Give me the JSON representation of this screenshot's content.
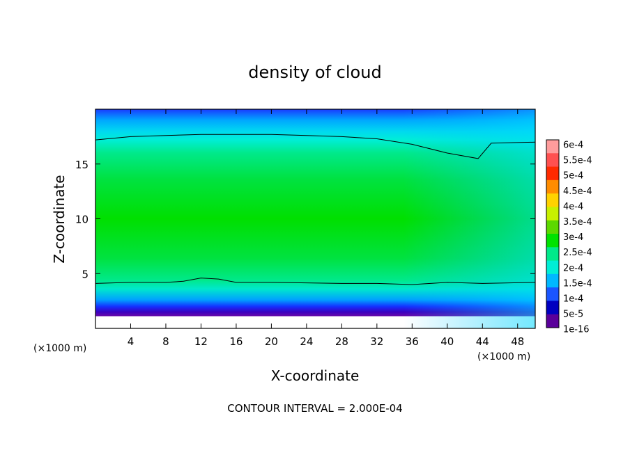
{
  "chart_data": {
    "type": "heatmap",
    "title": "density of cloud",
    "xlabel": "X-coordinate",
    "ylabel": "Z-coordinate",
    "x_unit": "(×1000 m)",
    "x_unit_right": "(×1000 m)",
    "xlim": [
      0,
      50
    ],
    "ylim": [
      0,
      20
    ],
    "x_ticks": [
      4,
      8,
      12,
      16,
      20,
      24,
      28,
      32,
      36,
      40,
      44,
      48
    ],
    "y_ticks": [
      5,
      10,
      15
    ],
    "footer": "CONTOUR INTERVAL = 2.000E-04",
    "colorbar": {
      "labels": [
        "6e-4",
        "5.5e-4",
        "5e-4",
        "4.5e-4",
        "4e-4",
        "3.5e-4",
        "3e-4",
        "2.5e-4",
        "2e-4",
        "1.5e-4",
        "1e-4",
        "5e-5",
        "1e-16"
      ],
      "colors": [
        "#ff9c9c",
        "#ff5050",
        "#ff2a00",
        "#ff8c00",
        "#ffd200",
        "#c8f000",
        "#5cd900",
        "#00e200",
        "#00e98a",
        "#00eed6",
        "#00b8ff",
        "#1a55ff",
        "#0000c0",
        "#5a009a"
      ]
    },
    "contour_level": 0.0002,
    "contour_upper_z": [
      17.2,
      17.5,
      17.6,
      17.7,
      17.7,
      17.7,
      17.6,
      17.5,
      17.3,
      16.8,
      16.0,
      15.5,
      16.9,
      17.0
    ],
    "contour_upper_x": [
      0,
      4,
      8,
      12,
      16,
      20,
      24,
      28,
      32,
      36,
      40,
      43.5,
      45,
      50
    ],
    "contour_lower_z": [
      4.1,
      4.2,
      4.2,
      4.3,
      4.6,
      4.5,
      4.2,
      4.2,
      4.1,
      4.1,
      4.0,
      4.2,
      4.1,
      4.2
    ],
    "contour_lower_x": [
      0,
      4,
      8,
      10,
      12,
      14,
      16,
      20,
      28,
      32,
      36,
      40,
      44,
      50
    ]
  }
}
